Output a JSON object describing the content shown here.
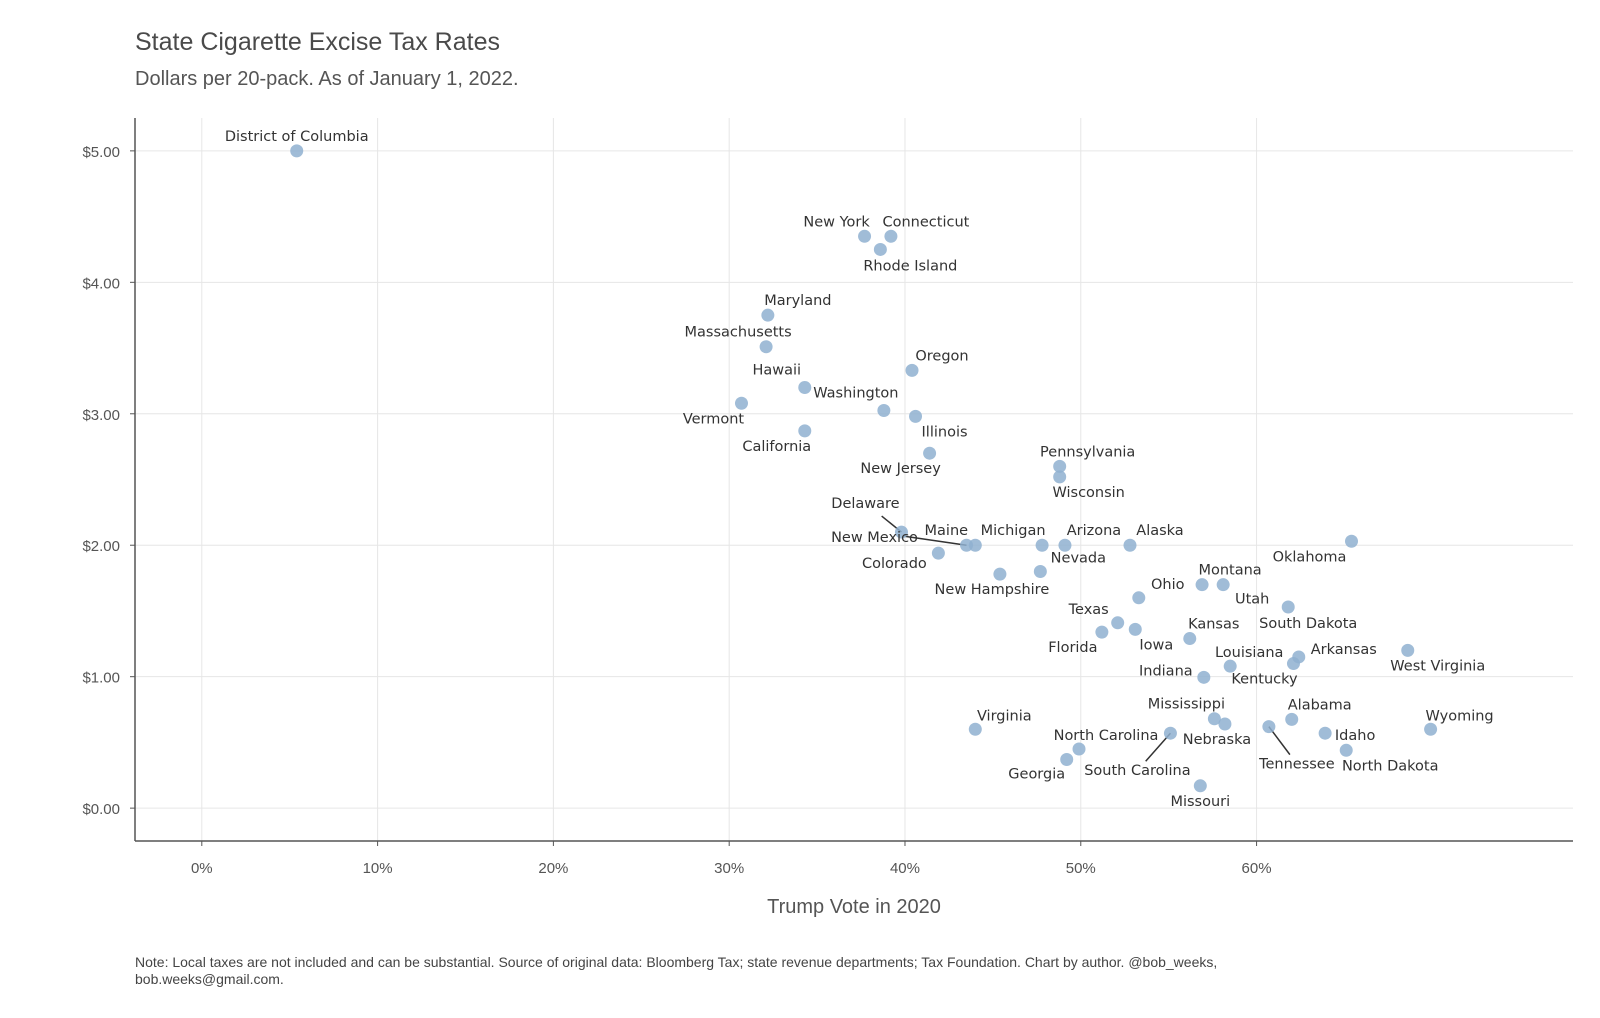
{
  "chart_data": {
    "type": "scatter",
    "title": "State Cigarette Excise Tax Rates",
    "subtitle": "Dollars per 20-pack. As of January 1, 2022.",
    "xlabel": "Trump Vote in 2020",
    "ylabel": "",
    "xlim": [
      -3.8,
      78
    ],
    "ylim": [
      -0.25,
      5.25
    ],
    "x_ticks": [
      0,
      10,
      20,
      30,
      40,
      50,
      60
    ],
    "x_tick_labels": [
      "0%",
      "10%",
      "20%",
      "30%",
      "40%",
      "50%",
      "60%"
    ],
    "y_ticks": [
      0,
      1,
      2,
      3,
      4,
      5
    ],
    "y_tick_labels": [
      "$0.00",
      "$1.00",
      "$2.00",
      "$3.00",
      "$4.00",
      "$5.00"
    ],
    "grid": true,
    "point_color": "#8fb0d0",
    "label_color": "#333333",
    "note": "Note: Local taxes are not included and can be substantial. Source of original data: Bloomberg Tax; state revenue departments; Tax Foundation. Chart by author. @bob_weeks, bob.weeks@gmail.com.",
    "points": [
      {
        "name": "District of Columbia",
        "x": 5.4,
        "y": 5.0,
        "anchor": "middle",
        "dx": 0,
        "dy": -10
      },
      {
        "name": "New York",
        "x": 37.7,
        "y": 4.35,
        "anchor": "middle",
        "dx": -28,
        "dy": -10
      },
      {
        "name": "Connecticut",
        "x": 39.2,
        "y": 4.35,
        "anchor": "middle",
        "dx": 35,
        "dy": -10
      },
      {
        "name": "Rhode Island",
        "x": 38.6,
        "y": 4.25,
        "anchor": "middle",
        "dx": 30,
        "dy": 21
      },
      {
        "name": "Maryland",
        "x": 32.2,
        "y": 3.75,
        "anchor": "middle",
        "dx": 30,
        "dy": -10
      },
      {
        "name": "Massachusetts",
        "x": 32.1,
        "y": 3.51,
        "anchor": "middle",
        "dx": -28,
        "dy": -10
      },
      {
        "name": "Oregon",
        "x": 40.4,
        "y": 3.33,
        "anchor": "middle",
        "dx": 30,
        "dy": -10
      },
      {
        "name": "Hawaii",
        "x": 34.3,
        "y": 3.2,
        "anchor": "middle",
        "dx": -28,
        "dy": -13
      },
      {
        "name": "Washington",
        "x": 38.8,
        "y": 3.025,
        "anchor": "middle",
        "dx": -28,
        "dy": -13
      },
      {
        "name": "Vermont",
        "x": 30.7,
        "y": 3.08,
        "anchor": "middle",
        "dx": -28,
        "dy": 20
      },
      {
        "name": "Illinois",
        "x": 40.6,
        "y": 2.98,
        "anchor": "middle",
        "dx": 29,
        "dy": 20
      },
      {
        "name": "California",
        "x": 34.3,
        "y": 2.87,
        "anchor": "middle",
        "dx": -28,
        "dy": 20
      },
      {
        "name": "New Jersey",
        "x": 41.4,
        "y": 2.7,
        "anchor": "middle",
        "dx": -29,
        "dy": 20
      },
      {
        "name": "Pennsylvania",
        "x": 48.8,
        "y": 2.6,
        "anchor": "middle",
        "dx": 28,
        "dy": -10
      },
      {
        "name": "Wisconsin",
        "x": 48.8,
        "y": 2.52,
        "anchor": "middle",
        "dx": 29,
        "dy": 20
      },
      {
        "name": "Delaware",
        "x": 39.8,
        "y": 2.1,
        "anchor": "middle",
        "dx": -36,
        "dy": -24,
        "line": true
      },
      {
        "name": "Maine",
        "x": 44.0,
        "y": 2.0,
        "anchor": "middle",
        "dx": -29,
        "dy": -10
      },
      {
        "name": "New Mexico",
        "x": 43.5,
        "y": 2.0,
        "anchor": "middle",
        "dx": -92,
        "dy": -3,
        "line": true
      },
      {
        "name": "Michigan",
        "x": 47.8,
        "y": 2.0,
        "anchor": "middle",
        "dx": -29,
        "dy": -10
      },
      {
        "name": "Arizona",
        "x": 49.1,
        "y": 2.0,
        "anchor": "middle",
        "dx": 29,
        "dy": -10
      },
      {
        "name": "Alaska",
        "x": 52.8,
        "y": 2.0,
        "anchor": "middle",
        "dx": 30,
        "dy": -10
      },
      {
        "name": "Oklahoma",
        "x": 65.4,
        "y": 2.03,
        "anchor": "middle",
        "dx": -42,
        "dy": 20
      },
      {
        "name": "Colorado",
        "x": 41.9,
        "y": 1.94,
        "anchor": "middle",
        "dx": -44,
        "dy": 15
      },
      {
        "name": "Nevada",
        "x": 47.7,
        "y": 1.8,
        "anchor": "middle",
        "dx": 38,
        "dy": -9
      },
      {
        "name": "New Hampshire",
        "x": 45.4,
        "y": 1.78,
        "anchor": "middle",
        "dx": -8,
        "dy": 20
      },
      {
        "name": "Montana",
        "x": 56.9,
        "y": 1.7,
        "anchor": "middle",
        "dx": 28,
        "dy": -10
      },
      {
        "name": "Utah",
        "x": 58.1,
        "y": 1.7,
        "anchor": "middle",
        "dx": 29,
        "dy": 19
      },
      {
        "name": "Ohio",
        "x": 53.3,
        "y": 1.6,
        "anchor": "middle",
        "dx": 29,
        "dy": -9
      },
      {
        "name": "South Dakota",
        "x": 61.8,
        "y": 1.53,
        "anchor": "middle",
        "dx": 20,
        "dy": 21
      },
      {
        "name": "Texas",
        "x": 52.1,
        "y": 1.41,
        "anchor": "middle",
        "dx": -29,
        "dy": -9
      },
      {
        "name": "Iowa",
        "x": 53.1,
        "y": 1.36,
        "anchor": "middle",
        "dx": 21,
        "dy": 20
      },
      {
        "name": "Kansas",
        "x": 56.2,
        "y": 1.29,
        "anchor": "middle",
        "dx": 24,
        "dy": -10
      },
      {
        "name": "Florida",
        "x": 51.2,
        "y": 1.339,
        "anchor": "middle",
        "dx": -29,
        "dy": 20
      },
      {
        "name": "Arkansas",
        "x": 62.4,
        "y": 1.15,
        "anchor": "middle",
        "dx": 45,
        "dy": -3
      },
      {
        "name": "West Virginia",
        "x": 68.6,
        "y": 1.2,
        "anchor": "middle",
        "dx": 30,
        "dy": 20
      },
      {
        "name": "Louisiana",
        "x": 58.5,
        "y": 1.08,
        "anchor": "middle",
        "dx": 19,
        "dy": -9
      },
      {
        "name": "Kentucky",
        "x": 62.1,
        "y": 1.1,
        "anchor": "middle",
        "dx": -29,
        "dy": 20
      },
      {
        "name": "Indiana",
        "x": 57.0,
        "y": 0.995,
        "anchor": "middle",
        "dx": -38,
        "dy": -2
      },
      {
        "name": "Mississippi",
        "x": 57.6,
        "y": 0.68,
        "anchor": "middle",
        "dx": -28,
        "dy": -10
      },
      {
        "name": "Nebraska",
        "x": 58.2,
        "y": 0.64,
        "anchor": "middle",
        "dx": -8,
        "dy": 20
      },
      {
        "name": "Alabama",
        "x": 62.0,
        "y": 0.675,
        "anchor": "middle",
        "dx": 28,
        "dy": -10
      },
      {
        "name": "Tennessee",
        "x": 60.7,
        "y": 0.62,
        "anchor": "middle",
        "dx": 28,
        "dy": 42,
        "line": true
      },
      {
        "name": "Idaho",
        "x": 63.9,
        "y": 0.57,
        "anchor": "middle",
        "dx": 30,
        "dy": 7
      },
      {
        "name": "Wyoming",
        "x": 69.9,
        "y": 0.6,
        "anchor": "middle",
        "dx": 29,
        "dy": -9
      },
      {
        "name": "North Dakota",
        "x": 65.1,
        "y": 0.44,
        "anchor": "middle",
        "dx": 44,
        "dy": 20
      },
      {
        "name": "Virginia",
        "x": 44.0,
        "y": 0.6,
        "anchor": "middle",
        "dx": 29,
        "dy": -9
      },
      {
        "name": "North Carolina",
        "x": 49.9,
        "y": 0.45,
        "anchor": "middle",
        "dx": 27,
        "dy": -9
      },
      {
        "name": "South Carolina",
        "x": 55.1,
        "y": 0.57,
        "anchor": "middle",
        "dx": -33,
        "dy": 42,
        "line": true
      },
      {
        "name": "Georgia",
        "x": 49.2,
        "y": 0.37,
        "anchor": "middle",
        "dx": -30,
        "dy": 19
      },
      {
        "name": "Missouri",
        "x": 56.8,
        "y": 0.17,
        "anchor": "middle",
        "dx": 0,
        "dy": 20
      }
    ]
  }
}
